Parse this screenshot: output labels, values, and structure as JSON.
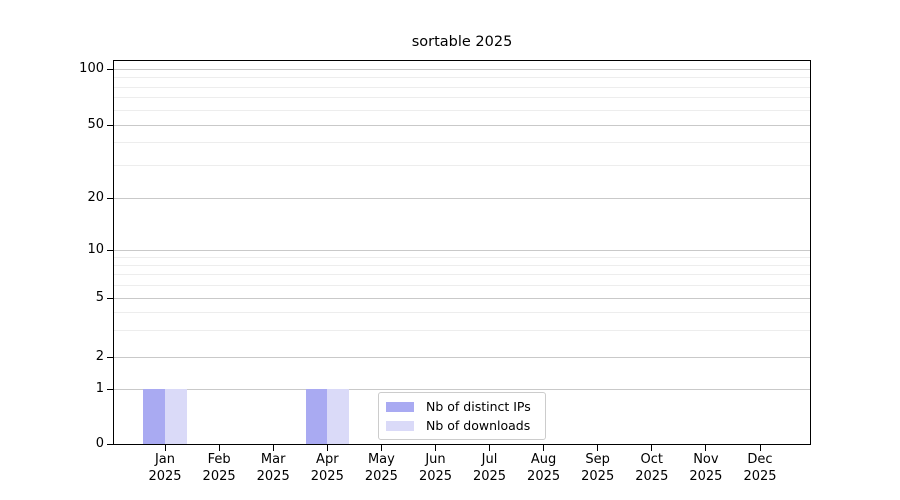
{
  "figure": {
    "background": "#ffffff"
  },
  "chart_data": {
    "type": "bar",
    "title": "sortable 2025",
    "x_categories": [
      {
        "month": "Jan",
        "year": "2025"
      },
      {
        "month": "Feb",
        "year": "2025"
      },
      {
        "month": "Mar",
        "year": "2025"
      },
      {
        "month": "Apr",
        "year": "2025"
      },
      {
        "month": "May",
        "year": "2025"
      },
      {
        "month": "Jun",
        "year": "2025"
      },
      {
        "month": "Jul",
        "year": "2025"
      },
      {
        "month": "Aug",
        "year": "2025"
      },
      {
        "month": "Sep",
        "year": "2025"
      },
      {
        "month": "Oct",
        "year": "2025"
      },
      {
        "month": "Nov",
        "year": "2025"
      },
      {
        "month": "Dec",
        "year": "2025"
      }
    ],
    "series": [
      {
        "name": "Nb of distinct IPs",
        "color": "#a9aaf2",
        "values": [
          1,
          0,
          0,
          1,
          0,
          0,
          0,
          0,
          0,
          0,
          0,
          0
        ]
      },
      {
        "name": "Nb of downloads",
        "color": "#dadaf8",
        "values": [
          1,
          0,
          0,
          1,
          0,
          0,
          0,
          0,
          0,
          0,
          0,
          0
        ]
      }
    ],
    "y_axis": {
      "scale": "symlog",
      "ticks": [
        0,
        1,
        2,
        5,
        10,
        20,
        50,
        100
      ],
      "minor_ticks": [
        3,
        4,
        6,
        7,
        8,
        9,
        30,
        40,
        60,
        70,
        80,
        90
      ]
    },
    "legend": {
      "position": "lower center"
    },
    "grid": {
      "major": true,
      "minor": true
    },
    "colors": {
      "major_grid": "#c9c9c9",
      "minor_grid": "#ededed",
      "axis": "#000000",
      "text": "#000000"
    }
  }
}
